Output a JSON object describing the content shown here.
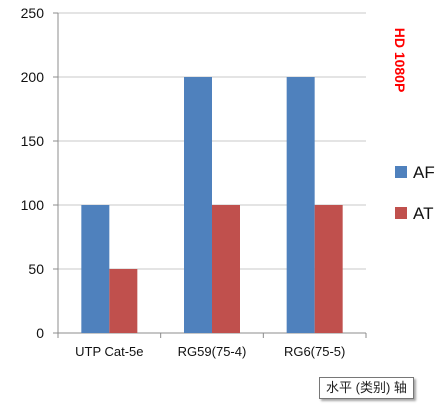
{
  "chart_data": {
    "type": "bar",
    "categories": [
      "UTP Cat-5e",
      "RG59(75-4)",
      "RG6(75-5)"
    ],
    "series": [
      {
        "name": "AF",
        "values": [
          100,
          200,
          200
        ]
      },
      {
        "name": "AT",
        "values": [
          50,
          100,
          100
        ]
      }
    ],
    "ylim": [
      0,
      250
    ],
    "yticks": [
      0,
      50,
      100,
      150,
      200,
      250
    ],
    "grid": true,
    "legend_position": "right",
    "side_label": "HD 1080P",
    "colors": {
      "AF": "#4f81bd",
      "AT": "#c0504d",
      "grid": "#c8c8c8",
      "axis": "#8c8c8c",
      "side_label": "#ff0000"
    }
  },
  "tooltip": {
    "text": "水平 (类别) 轴"
  }
}
